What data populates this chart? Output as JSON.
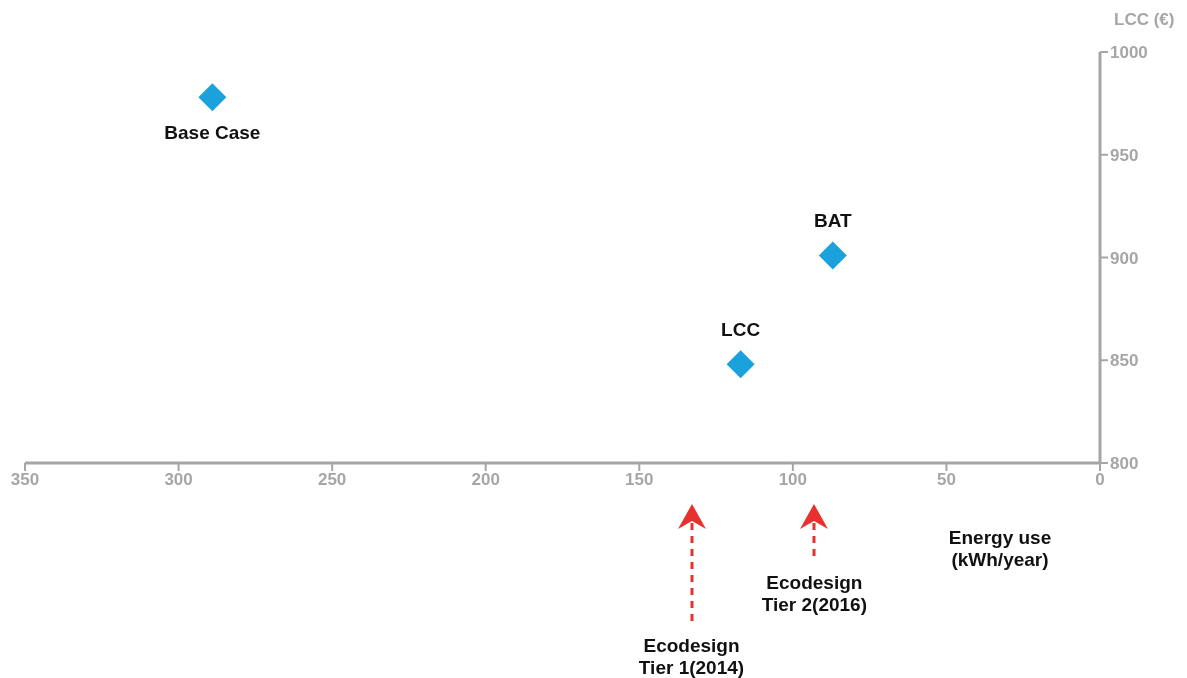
{
  "chart_data": {
    "type": "scatter",
    "xlabel": "Energy use (kWh/year)",
    "ylabel": "LCC (€)",
    "x": [
      289,
      117,
      87
    ],
    "values": [
      978,
      848,
      901
    ],
    "value_labels": [
      "Base Case",
      "LCC",
      "BAT"
    ],
    "color": "#1ba1db",
    "marker": "diamond",
    "grid": false,
    "xlim": [
      350,
      0
    ],
    "xticks": [
      350,
      300,
      250,
      200,
      150,
      100,
      50,
      0
    ],
    "ylim": [
      800,
      1000
    ],
    "yticks": [
      800,
      850,
      900,
      950,
      1000
    ],
    "ref_lines": [
      {
        "axis": "x",
        "value": 133,
        "label": "Ecodesign Tier 1(2014)",
        "color": "#e8312f",
        "line_style": "dashed"
      },
      {
        "axis": "x",
        "value": 93,
        "label": "Ecodesign Tier 2(2016)",
        "color": "#e8312f",
        "line_style": "dashed"
      }
    ]
  }
}
